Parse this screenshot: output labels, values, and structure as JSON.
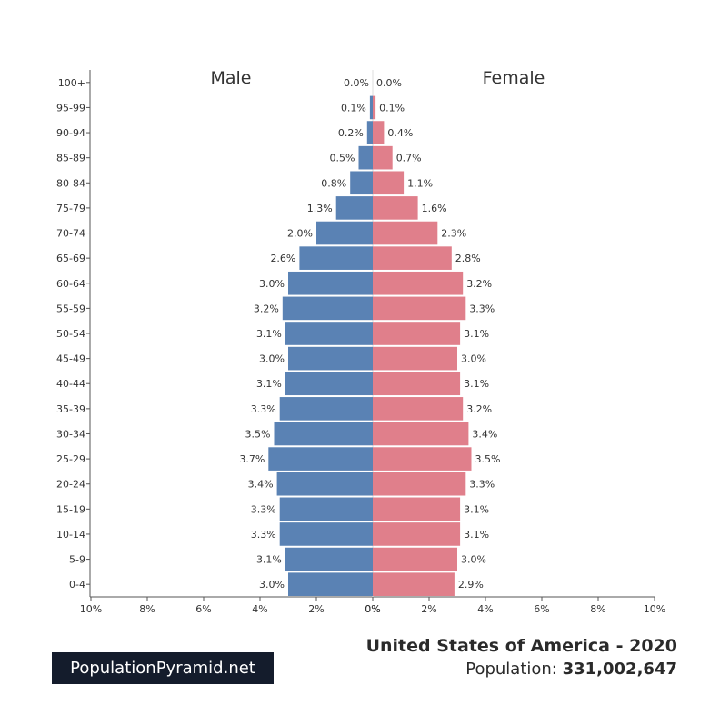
{
  "chart_data": {
    "type": "bar",
    "orientation": "horizontal-population-pyramid",
    "side_titles": {
      "male": "Male",
      "female": "Female"
    },
    "categories": [
      "0-4",
      "5-9",
      "10-14",
      "15-19",
      "20-24",
      "25-29",
      "30-34",
      "35-39",
      "40-44",
      "45-49",
      "50-54",
      "55-59",
      "60-64",
      "65-69",
      "70-74",
      "75-79",
      "80-84",
      "85-89",
      "90-94",
      "95-99",
      "100+"
    ],
    "series": [
      {
        "name": "Male",
        "color": "#5a82b4",
        "values": [
          3.0,
          3.1,
          3.3,
          3.3,
          3.4,
          3.7,
          3.5,
          3.3,
          3.1,
          3.0,
          3.1,
          3.2,
          3.0,
          2.6,
          2.0,
          1.3,
          0.8,
          0.5,
          0.2,
          0.1,
          0.0
        ],
        "labels": [
          "3.0%",
          "3.1%",
          "3.3%",
          "3.3%",
          "3.4%",
          "3.7%",
          "3.5%",
          "3.3%",
          "3.1%",
          "3.0%",
          "3.1%",
          "3.2%",
          "3.0%",
          "2.6%",
          "2.0%",
          "1.3%",
          "0.8%",
          "0.5%",
          "0.2%",
          "0.1%",
          "0.0%"
        ]
      },
      {
        "name": "Female",
        "color": "#e07f8b",
        "values": [
          2.9,
          3.0,
          3.1,
          3.1,
          3.3,
          3.5,
          3.4,
          3.2,
          3.1,
          3.0,
          3.1,
          3.3,
          3.2,
          2.8,
          2.3,
          1.6,
          1.1,
          0.7,
          0.4,
          0.1,
          0.0
        ],
        "labels": [
          "2.9%",
          "3.0%",
          "3.1%",
          "3.1%",
          "3.3%",
          "3.5%",
          "3.4%",
          "3.2%",
          "3.1%",
          "3.0%",
          "3.1%",
          "3.3%",
          "3.2%",
          "2.8%",
          "2.3%",
          "1.6%",
          "1.1%",
          "0.7%",
          "0.4%",
          "0.1%",
          "0.0%"
        ]
      }
    ],
    "x_ticks": [
      "10%",
      "8%",
      "6%",
      "4%",
      "2%",
      "0%",
      "0%",
      "2%",
      "4%",
      "6%",
      "8%",
      "10%"
    ],
    "xlim": [
      -10,
      10
    ],
    "grid": false
  },
  "footer": {
    "brand": "PopulationPyramid.net",
    "title": "United States of America - 2020",
    "population_label": "Population: ",
    "population_value": "331,002,647"
  }
}
